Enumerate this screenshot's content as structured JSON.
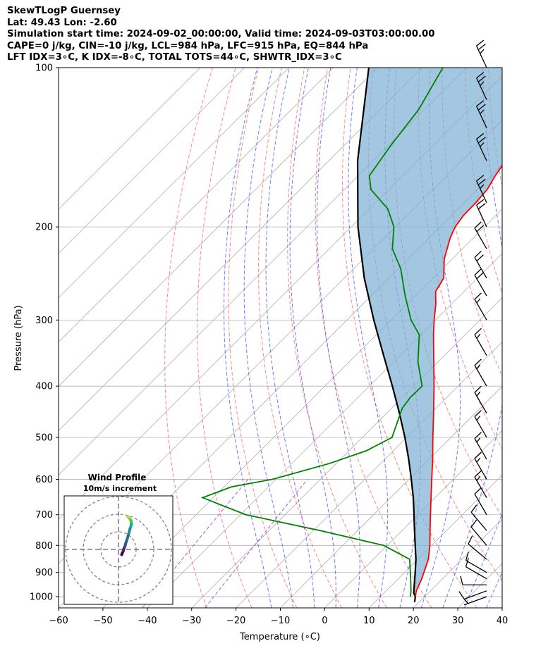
{
  "header": {
    "title": "SkewTLogP Guernsey",
    "location": "Lat: 49.43   Lon: -2.60",
    "times": "Simulation start time: 2024-09-02_00:00:00, Valid time: 2024-09-03T03:00:00.00",
    "indices_1": "CAPE=0 j/kg, CIN=-10 j/kg, LCL=984 hPa, LFC=915 hPa, EQ=844 hPa",
    "indices_2": "LFT IDX=3∘C, K IDX=-8∘C, TOTAL TOTS=44∘C, SHWTR_IDX=3∘C"
  },
  "chart_data": {
    "type": "skewt",
    "xlabel": "Temperature (∘C)",
    "ylabel": "Pressure (hPa)",
    "xlim": [
      -60,
      40
    ],
    "ylim": [
      1050,
      100
    ],
    "x_ticks": [
      "−60",
      "−50",
      "−40",
      "−30",
      "−20",
      "−10",
      "0",
      "10",
      "20",
      "30",
      "40"
    ],
    "y_ticks": [
      100,
      200,
      300,
      400,
      500,
      600,
      700,
      800,
      900,
      1000
    ],
    "grid": true,
    "colors": {
      "temperature": "#ff0000",
      "dewpoint": "#008000",
      "parcel": "#000000",
      "cape_fill": "#7fb2d6",
      "dry_adiabat": "#ff5a5a",
      "moist_adiabat": "#3a4cff",
      "mixing_ratio": "#8e35c8"
    },
    "temperature_profile": {
      "pressure": [
        1000,
        975,
        925,
        850,
        800,
        750,
        700,
        650,
        600,
        550,
        500,
        450,
        400,
        350,
        320,
        300,
        280,
        265,
        250,
        230,
        210,
        200,
        190,
        180,
        170,
        160,
        140,
        120,
        110,
        100
      ],
      "values": [
        17.9,
        16.8,
        15.3,
        12.4,
        9.6,
        6.3,
        2.8,
        -0.9,
        -4.9,
        -9.2,
        -14.1,
        -19.4,
        -25.4,
        -32.4,
        -37.1,
        -40.3,
        -43.5,
        -46.4,
        -47.6,
        -51.8,
        -55.2,
        -56.6,
        -57.3,
        -57.4,
        -57.8,
        -59.1,
        -61.3,
        -62.0,
        -63.1,
        -63.5
      ]
    },
    "dewpoint_profile": {
      "pressure": [
        1000,
        975,
        925,
        850,
        800,
        750,
        700,
        650,
        620,
        600,
        560,
        530,
        500,
        470,
        440,
        420,
        400,
        360,
        320,
        300,
        270,
        240,
        220,
        200,
        185,
        170,
        160,
        140,
        120,
        100
      ],
      "values": [
        16.8,
        15.6,
        12.8,
        8.2,
        -0.8,
        -18.5,
        -38.8,
        -52.4,
        -48.3,
        -40.8,
        -31.5,
        -26.1,
        -23.3,
        -25.4,
        -27.6,
        -28.2,
        -28.1,
        -34.5,
        -40.3,
        -45.5,
        -52.3,
        -59.4,
        -65.8,
        -70.4,
        -75.8,
        -84.0,
        -87.5,
        -89.5,
        -91.3,
        -95.3
      ]
    },
    "parcel_profile": {
      "pressure": [
        1025,
        1000,
        984,
        950,
        900,
        850,
        800,
        750,
        700,
        650,
        600,
        550,
        500,
        450,
        400,
        350,
        300,
        250,
        200,
        150,
        100
      ],
      "values": [
        19.0,
        17.9,
        16.7,
        15.0,
        12.4,
        9.6,
        6.3,
        2.8,
        -0.9,
        -4.9,
        -9.5,
        -14.6,
        -20.4,
        -27.1,
        -34.8,
        -43.7,
        -53.9,
        -65.5,
        -78.5,
        -93.5,
        -112.0
      ]
    },
    "wind_barbs": {
      "pressure": [
        1000,
        975,
        950,
        925,
        900,
        850,
        800,
        750,
        700,
        650,
        600,
        550,
        500,
        450,
        400,
        350,
        300,
        270,
        250,
        220,
        200,
        180,
        150,
        130,
        115,
        100
      ],
      "speed_kt": [
        5,
        10,
        10,
        12,
        12,
        10,
        12,
        12,
        12,
        14,
        14,
        15,
        15,
        15,
        15,
        15,
        15,
        20,
        20,
        20,
        20,
        25,
        25,
        25,
        25,
        25
      ],
      "direction_deg": [
        250,
        250,
        270,
        300,
        300,
        310,
        320,
        320,
        330,
        330,
        330,
        330,
        330,
        330,
        330,
        330,
        330,
        330,
        330,
        330,
        335,
        335,
        335,
        335,
        335,
        335
      ]
    },
    "inset": {
      "title": "Wind Profile",
      "subtitle": "10m/s increment",
      "rings_ms": [
        10,
        20,
        30
      ],
      "hodograph": {
        "u": [
          1.5,
          1.8,
          2.3,
          2.6,
          3.0,
          3.2,
          3.4,
          3.8,
          4.2,
          4.6,
          5.0,
          5.4,
          5.8,
          6.1,
          6.0,
          5.7,
          5.3,
          4.9,
          4.5,
          4.2
        ],
        "v": [
          -2.5,
          -1.7,
          -0.7,
          0.5,
          1.3,
          2.0,
          2.8,
          4.0,
          5.2,
          6.6,
          8.0,
          9.6,
          10.8,
          12.0,
          13.2,
          14.0,
          14.5,
          15.0,
          15.4,
          15.6
        ]
      }
    }
  }
}
